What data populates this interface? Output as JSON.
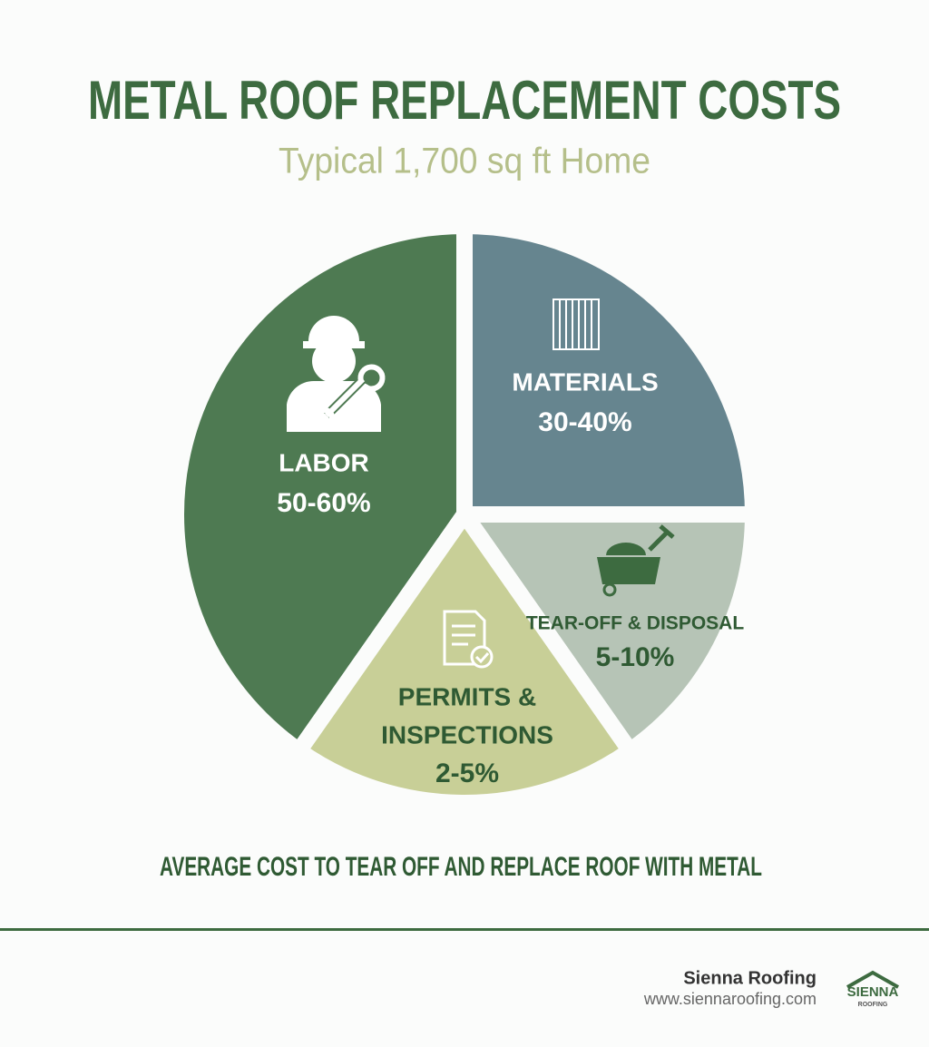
{
  "header": {
    "title": "METAL ROOF REPLACEMENT COSTS",
    "subtitle": "Typical 1,700 sq ft Home"
  },
  "segments": [
    {
      "label": "LABOR",
      "share": "50-60%"
    },
    {
      "label": "MATERIALS",
      "share": "30-40%"
    },
    {
      "label": "TEAR-OFF & DISPOSAL",
      "share": "5-10%"
    },
    {
      "label": "PERMITS & INSPECTIONS",
      "label_lines": [
        "PERMITS &",
        "INSPECTIONS"
      ],
      "share": "2-5%"
    }
  ],
  "caption": "AVERAGE COST TO TEAR OFF AND REPLACE ROOF WITH METAL",
  "footer": {
    "company": "Sienna Roofing",
    "url": "www.siennaroofing.com",
    "logo_text": "SIENNA",
    "logo_subtext": "ROOFING"
  }
}
